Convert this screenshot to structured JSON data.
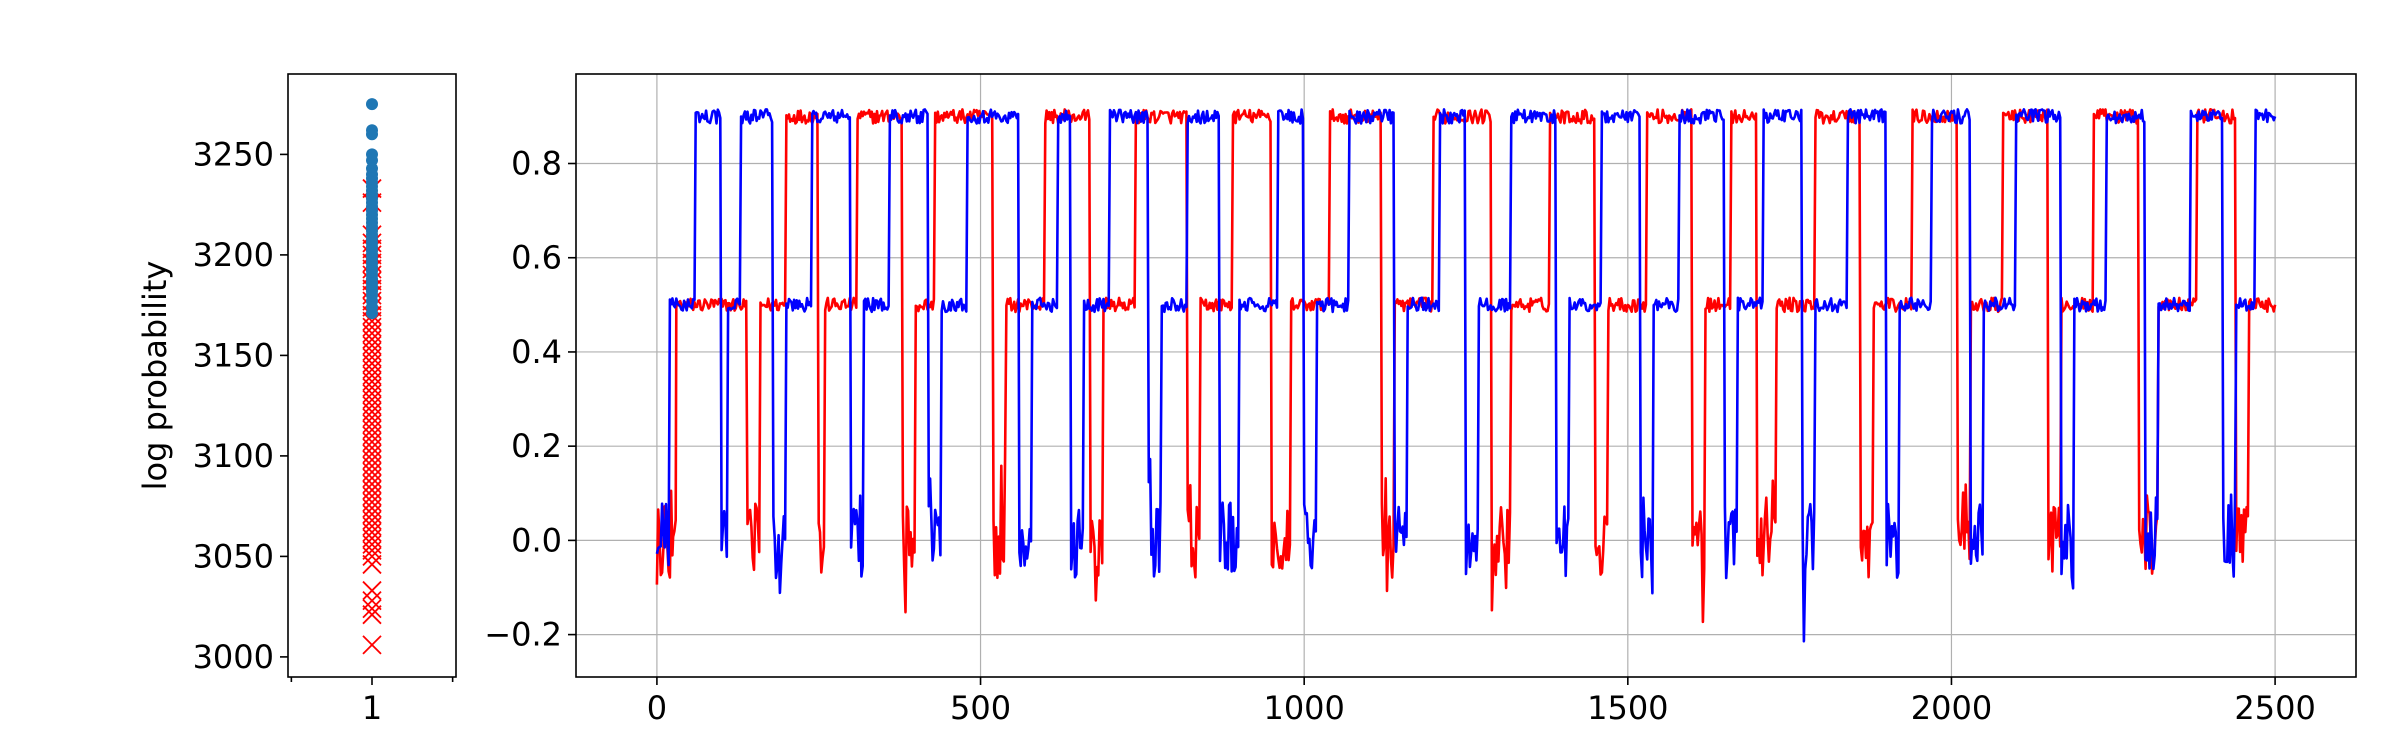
{
  "colors": {
    "red_series": "#ff0000",
    "blue_series": "#0000ff",
    "dots": "#1f77b4",
    "crosses": "#ff0000",
    "grid": "#b0b0b0",
    "axes": "#000000"
  },
  "chart_data": [
    {
      "type": "scatter",
      "title": "",
      "xlabel": "",
      "ylabel": "log probability",
      "ylim": [
        2990,
        3290
      ],
      "xlim": [
        0.5,
        1.5
      ],
      "x_ticks": [
        1
      ],
      "y_ticks": [
        3000,
        3050,
        3100,
        3150,
        3200,
        3250
      ],
      "grid": false,
      "series": [
        {
          "marker": "circle",
          "color": "#1f77b4",
          "x": 1,
          "y": [
            3275,
            3262,
            3260,
            3250,
            3247,
            3243,
            3240,
            3238,
            3236,
            3234,
            3232,
            3230,
            3228,
            3226,
            3224,
            3222,
            3220,
            3218,
            3216,
            3214,
            3212,
            3210,
            3208,
            3206,
            3204,
            3202,
            3200,
            3198,
            3196,
            3194,
            3192,
            3190,
            3188,
            3186,
            3184,
            3182,
            3180,
            3177,
            3174,
            3171
          ]
        },
        {
          "marker": "x",
          "color": "#ff0000",
          "x": 1,
          "y": [
            3233,
            3226,
            3210,
            3206,
            3203,
            3200,
            3196,
            3193,
            3190,
            3187,
            3183,
            3180,
            3177,
            3174,
            3170,
            3167,
            3164,
            3161,
            3158,
            3155,
            3152,
            3149,
            3146,
            3143,
            3140,
            3137,
            3134,
            3131,
            3128,
            3125,
            3122,
            3119,
            3116,
            3113,
            3110,
            3107,
            3104,
            3101,
            3098,
            3095,
            3092,
            3089,
            3086,
            3083,
            3080,
            3077,
            3074,
            3071,
            3068,
            3065,
            3062,
            3059,
            3056,
            3053,
            3050,
            3046,
            3033,
            3028,
            3024,
            3021,
            3006
          ]
        }
      ]
    },
    {
      "type": "line",
      "title": "",
      "xlabel": "",
      "ylabel": "",
      "xlim": [
        -125,
        2625
      ],
      "ylim": [
        -0.29,
        0.99
      ],
      "x_ticks": [
        0,
        500,
        1000,
        1500,
        2000,
        2500
      ],
      "y_ticks": [
        -0.2,
        0.0,
        0.2,
        0.4,
        0.6,
        0.8
      ],
      "grid": true,
      "levels": [
        0.0,
        0.5,
        0.9
      ],
      "series": [
        {
          "color": "#ff0000",
          "segments": [
            [
              0,
              0.0
            ],
            [
              25,
              0.0
            ],
            [
              30,
              0.5
            ],
            [
              140,
              0.0
            ],
            [
              160,
              0.5
            ],
            [
              200,
              0.9
            ],
            [
              250,
              0.0
            ],
            [
              260,
              0.5
            ],
            [
              310,
              0.9
            ],
            [
              380,
              0.0
            ],
            [
              400,
              0.5
            ],
            [
              430,
              0.9
            ],
            [
              520,
              0.0
            ],
            [
              540,
              0.5
            ],
            [
              600,
              0.9
            ],
            [
              670,
              0.0
            ],
            [
              690,
              0.5
            ],
            [
              740,
              0.9
            ],
            [
              820,
              0.0
            ],
            [
              840,
              0.5
            ],
            [
              890,
              0.9
            ],
            [
              950,
              0.0
            ],
            [
              980,
              0.5
            ],
            [
              1040,
              0.9
            ],
            [
              1120,
              0.0
            ],
            [
              1140,
              0.5
            ],
            [
              1200,
              0.9
            ],
            [
              1290,
              0.0
            ],
            [
              1320,
              0.5
            ],
            [
              1380,
              0.9
            ],
            [
              1450,
              0.0
            ],
            [
              1470,
              0.5
            ],
            [
              1530,
              0.9
            ],
            [
              1600,
              0.0
            ],
            [
              1620,
              0.5
            ],
            [
              1660,
              0.9
            ],
            [
              1700,
              0.0
            ],
            [
              1730,
              0.5
            ],
            [
              1790,
              0.9
            ],
            [
              1860,
              0.0
            ],
            [
              1880,
              0.5
            ],
            [
              1940,
              0.9
            ],
            [
              2010,
              0.0
            ],
            [
              2030,
              0.5
            ],
            [
              2080,
              0.9
            ],
            [
              2150,
              0.0
            ],
            [
              2170,
              0.5
            ],
            [
              2220,
              0.9
            ],
            [
              2290,
              0.0
            ],
            [
              2320,
              0.5
            ],
            [
              2380,
              0.9
            ],
            [
              2440,
              0.0
            ],
            [
              2460,
              0.5
            ],
            [
              2500,
              0.5
            ]
          ]
        },
        {
          "color": "#0000ff",
          "segments": [
            [
              0,
              0.0
            ],
            [
              20,
              0.5
            ],
            [
              60,
              0.9
            ],
            [
              100,
              0.0
            ],
            [
              110,
              0.5
            ],
            [
              130,
              0.9
            ],
            [
              180,
              0.0
            ],
            [
              200,
              0.5
            ],
            [
              240,
              0.9
            ],
            [
              300,
              0.0
            ],
            [
              320,
              0.5
            ],
            [
              360,
              0.9
            ],
            [
              420,
              0.0
            ],
            [
              440,
              0.5
            ],
            [
              480,
              0.9
            ],
            [
              560,
              0.0
            ],
            [
              580,
              0.5
            ],
            [
              620,
              0.9
            ],
            [
              640,
              0.0
            ],
            [
              660,
              0.5
            ],
            [
              700,
              0.9
            ],
            [
              760,
              0.0
            ],
            [
              780,
              0.5
            ],
            [
              820,
              0.9
            ],
            [
              870,
              0.0
            ],
            [
              900,
              0.5
            ],
            [
              960,
              0.9
            ],
            [
              1000,
              0.0
            ],
            [
              1020,
              0.5
            ],
            [
              1070,
              0.9
            ],
            [
              1140,
              0.0
            ],
            [
              1160,
              0.5
            ],
            [
              1210,
              0.9
            ],
            [
              1250,
              0.0
            ],
            [
              1270,
              0.5
            ],
            [
              1320,
              0.9
            ],
            [
              1390,
              0.0
            ],
            [
              1410,
              0.5
            ],
            [
              1460,
              0.9
            ],
            [
              1520,
              0.0
            ],
            [
              1540,
              0.5
            ],
            [
              1580,
              0.9
            ],
            [
              1650,
              0.0
            ],
            [
              1670,
              0.5
            ],
            [
              1710,
              0.9
            ],
            [
              1770,
              0.0
            ],
            [
              1790,
              0.5
            ],
            [
              1840,
              0.9
            ],
            [
              1900,
              0.0
            ],
            [
              1920,
              0.5
            ],
            [
              1970,
              0.9
            ],
            [
              2030,
              0.0
            ],
            [
              2050,
              0.5
            ],
            [
              2100,
              0.9
            ],
            [
              2170,
              0.0
            ],
            [
              2190,
              0.5
            ],
            [
              2240,
              0.9
            ],
            [
              2300,
              0.0
            ],
            [
              2320,
              0.5
            ],
            [
              2370,
              0.9
            ],
            [
              2420,
              0.0
            ],
            [
              2440,
              0.5
            ],
            [
              2470,
              0.9
            ],
            [
              2500,
              0.9
            ]
          ]
        }
      ]
    }
  ]
}
